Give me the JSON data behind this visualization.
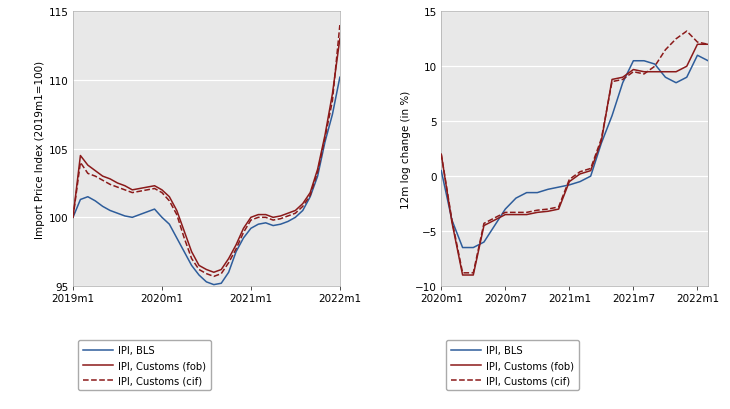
{
  "left": {
    "ylabel": "Import Price Index (2019m1=100)",
    "ylim": [
      95,
      115
    ],
    "yticks": [
      95,
      100,
      105,
      110,
      115
    ],
    "xticks_labels": [
      "2019m1",
      "2020m1",
      "2021m1",
      "2022m1"
    ],
    "xticks_pos": [
      0,
      12,
      24,
      36
    ],
    "ipi_bls": [
      100.0,
      101.3,
      101.5,
      101.2,
      100.8,
      100.5,
      100.3,
      100.1,
      100.0,
      100.2,
      100.4,
      100.6,
      100.0,
      99.5,
      98.5,
      97.5,
      96.5,
      95.8,
      95.3,
      95.1,
      95.2,
      96.0,
      97.5,
      98.5,
      99.2,
      99.5,
      99.6,
      99.4,
      99.5,
      99.7,
      100.0,
      100.5,
      101.5,
      103.0,
      105.5,
      107.5,
      110.2
    ],
    "customs_fob": [
      100.0,
      104.5,
      103.8,
      103.4,
      103.0,
      102.8,
      102.5,
      102.3,
      102.0,
      102.1,
      102.2,
      102.3,
      102.0,
      101.5,
      100.5,
      99.0,
      97.5,
      96.5,
      96.2,
      96.0,
      96.2,
      97.0,
      98.0,
      99.2,
      100.0,
      100.2,
      100.2,
      100.0,
      100.1,
      100.3,
      100.5,
      101.0,
      101.8,
      103.5,
      106.0,
      109.0,
      113.0
    ],
    "customs_cif": [
      100.0,
      104.0,
      103.2,
      103.0,
      102.7,
      102.4,
      102.2,
      102.0,
      101.8,
      101.9,
      102.0,
      102.1,
      101.8,
      101.2,
      100.2,
      98.5,
      97.0,
      96.2,
      95.9,
      95.7,
      95.9,
      96.7,
      97.7,
      98.9,
      99.8,
      100.0,
      100.0,
      99.8,
      99.9,
      100.1,
      100.3,
      100.8,
      101.6,
      103.3,
      105.8,
      108.5,
      114.0
    ]
  },
  "right": {
    "ylabel": "12m log change (in %)",
    "ylim": [
      -10,
      15
    ],
    "yticks": [
      -10,
      -5,
      0,
      5,
      10,
      15
    ],
    "xticks_labels": [
      "2020m1",
      "2020m7",
      "2021m1",
      "2021m7",
      "2022m1"
    ],
    "xticks_pos": [
      0,
      6,
      12,
      18,
      24
    ],
    "ipi_bls": [
      0.5,
      -4.0,
      -6.5,
      -6.5,
      -6.0,
      -4.5,
      -3.0,
      -2.0,
      -1.5,
      -1.5,
      -1.2,
      -1.0,
      -0.8,
      -0.5,
      0.0,
      3.0,
      5.5,
      8.5,
      10.5,
      10.5,
      10.2,
      9.0,
      8.5,
      9.0,
      11.0,
      10.5
    ],
    "customs_fob": [
      2.0,
      -4.2,
      -9.0,
      -9.0,
      -4.5,
      -4.0,
      -3.5,
      -3.5,
      -3.5,
      -3.3,
      -3.2,
      -3.0,
      -0.5,
      0.2,
      0.5,
      3.2,
      8.8,
      9.0,
      9.7,
      9.5,
      9.5,
      9.5,
      9.5,
      10.0,
      12.0,
      12.0
    ],
    "customs_cif": [
      2.0,
      -4.0,
      -8.8,
      -8.8,
      -4.3,
      -3.8,
      -3.3,
      -3.3,
      -3.3,
      -3.1,
      -3.0,
      -2.8,
      -0.3,
      0.4,
      0.7,
      3.4,
      8.6,
      8.8,
      9.5,
      9.3,
      10.0,
      11.5,
      12.5,
      13.2,
      12.2,
      12.0
    ]
  },
  "color_bls": "#2e5d9b",
  "color_customs": "#8b1a1a",
  "legend_labels": [
    "IPI, BLS",
    "IPI, Customs (fob)",
    "IPI, Customs (cif)"
  ],
  "plot_bg": "#e8e8e8",
  "fig_bg": "#ffffff",
  "grid_color": "#ffffff",
  "spine_color": "#aaaaaa"
}
